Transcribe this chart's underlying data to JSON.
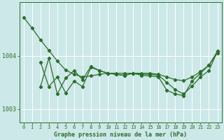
{
  "background_color": "#cce8e8",
  "grid_color": "#ffffff",
  "line_color": "#2d6e2d",
  "xlabel": "Graphe pression niveau de la mer (hPa)",
  "xlim": [
    -0.5,
    23.5
  ],
  "ylim": [
    1002.75,
    1005.0
  ],
  "yticks": [
    1003,
    1004
  ],
  "ytick_labels": [
    "1003",
    "1004"
  ],
  "xticks": [
    0,
    1,
    2,
    3,
    4,
    5,
    6,
    7,
    8,
    9,
    10,
    11,
    12,
    13,
    14,
    15,
    16,
    17,
    18,
    19,
    20,
    21,
    22,
    23
  ],
  "series": {
    "smooth_x": [
      0,
      1,
      2,
      3,
      4,
      5,
      6,
      7,
      8,
      9,
      10,
      11,
      12,
      13,
      14,
      15,
      16,
      17,
      18,
      19,
      20,
      21,
      22,
      23
    ],
    "smooth_y": [
      1004.72,
      1004.52,
      1004.3,
      1004.1,
      1003.9,
      1003.73,
      1003.65,
      1003.6,
      1003.62,
      1003.65,
      1003.67,
      1003.67,
      1003.67,
      1003.67,
      1003.67,
      1003.67,
      1003.65,
      1003.6,
      1003.55,
      1003.53,
      1003.6,
      1003.7,
      1003.82,
      1004.05
    ],
    "jagged_x": [
      2,
      3,
      4,
      5,
      6,
      7,
      8,
      9,
      10,
      11,
      12,
      13,
      14,
      15,
      16,
      17,
      18,
      19,
      20,
      21,
      22,
      23
    ],
    "jagged_y": [
      1003.88,
      1003.42,
      1003.6,
      1003.3,
      1003.52,
      1003.42,
      1003.78,
      1003.72,
      1003.67,
      1003.65,
      1003.63,
      1003.67,
      1003.65,
      1003.65,
      1003.63,
      1003.5,
      1003.36,
      1003.28,
      1003.43,
      1003.6,
      1003.72,
      1004.08
    ],
    "jagged2_x": [
      2,
      3,
      4,
      5,
      6,
      7,
      8,
      9,
      10,
      11,
      12,
      13,
      14,
      15,
      16,
      17,
      18,
      19,
      20,
      21,
      22,
      23
    ],
    "jagged2_y": [
      1003.42,
      1003.95,
      1003.28,
      1003.58,
      1003.72,
      1003.55,
      1003.8,
      1003.72,
      1003.67,
      1003.65,
      1003.63,
      1003.67,
      1003.63,
      1003.62,
      1003.6,
      1003.35,
      1003.28,
      1003.25,
      1003.52,
      1003.67,
      1003.82,
      1004.08
    ]
  },
  "figsize": [
    3.2,
    2.0
  ],
  "dpi": 100,
  "linewidth": 0.9,
  "markersize": 2.2,
  "tick_fontsize": 5.0,
  "xlabel_fontsize": 6.0
}
